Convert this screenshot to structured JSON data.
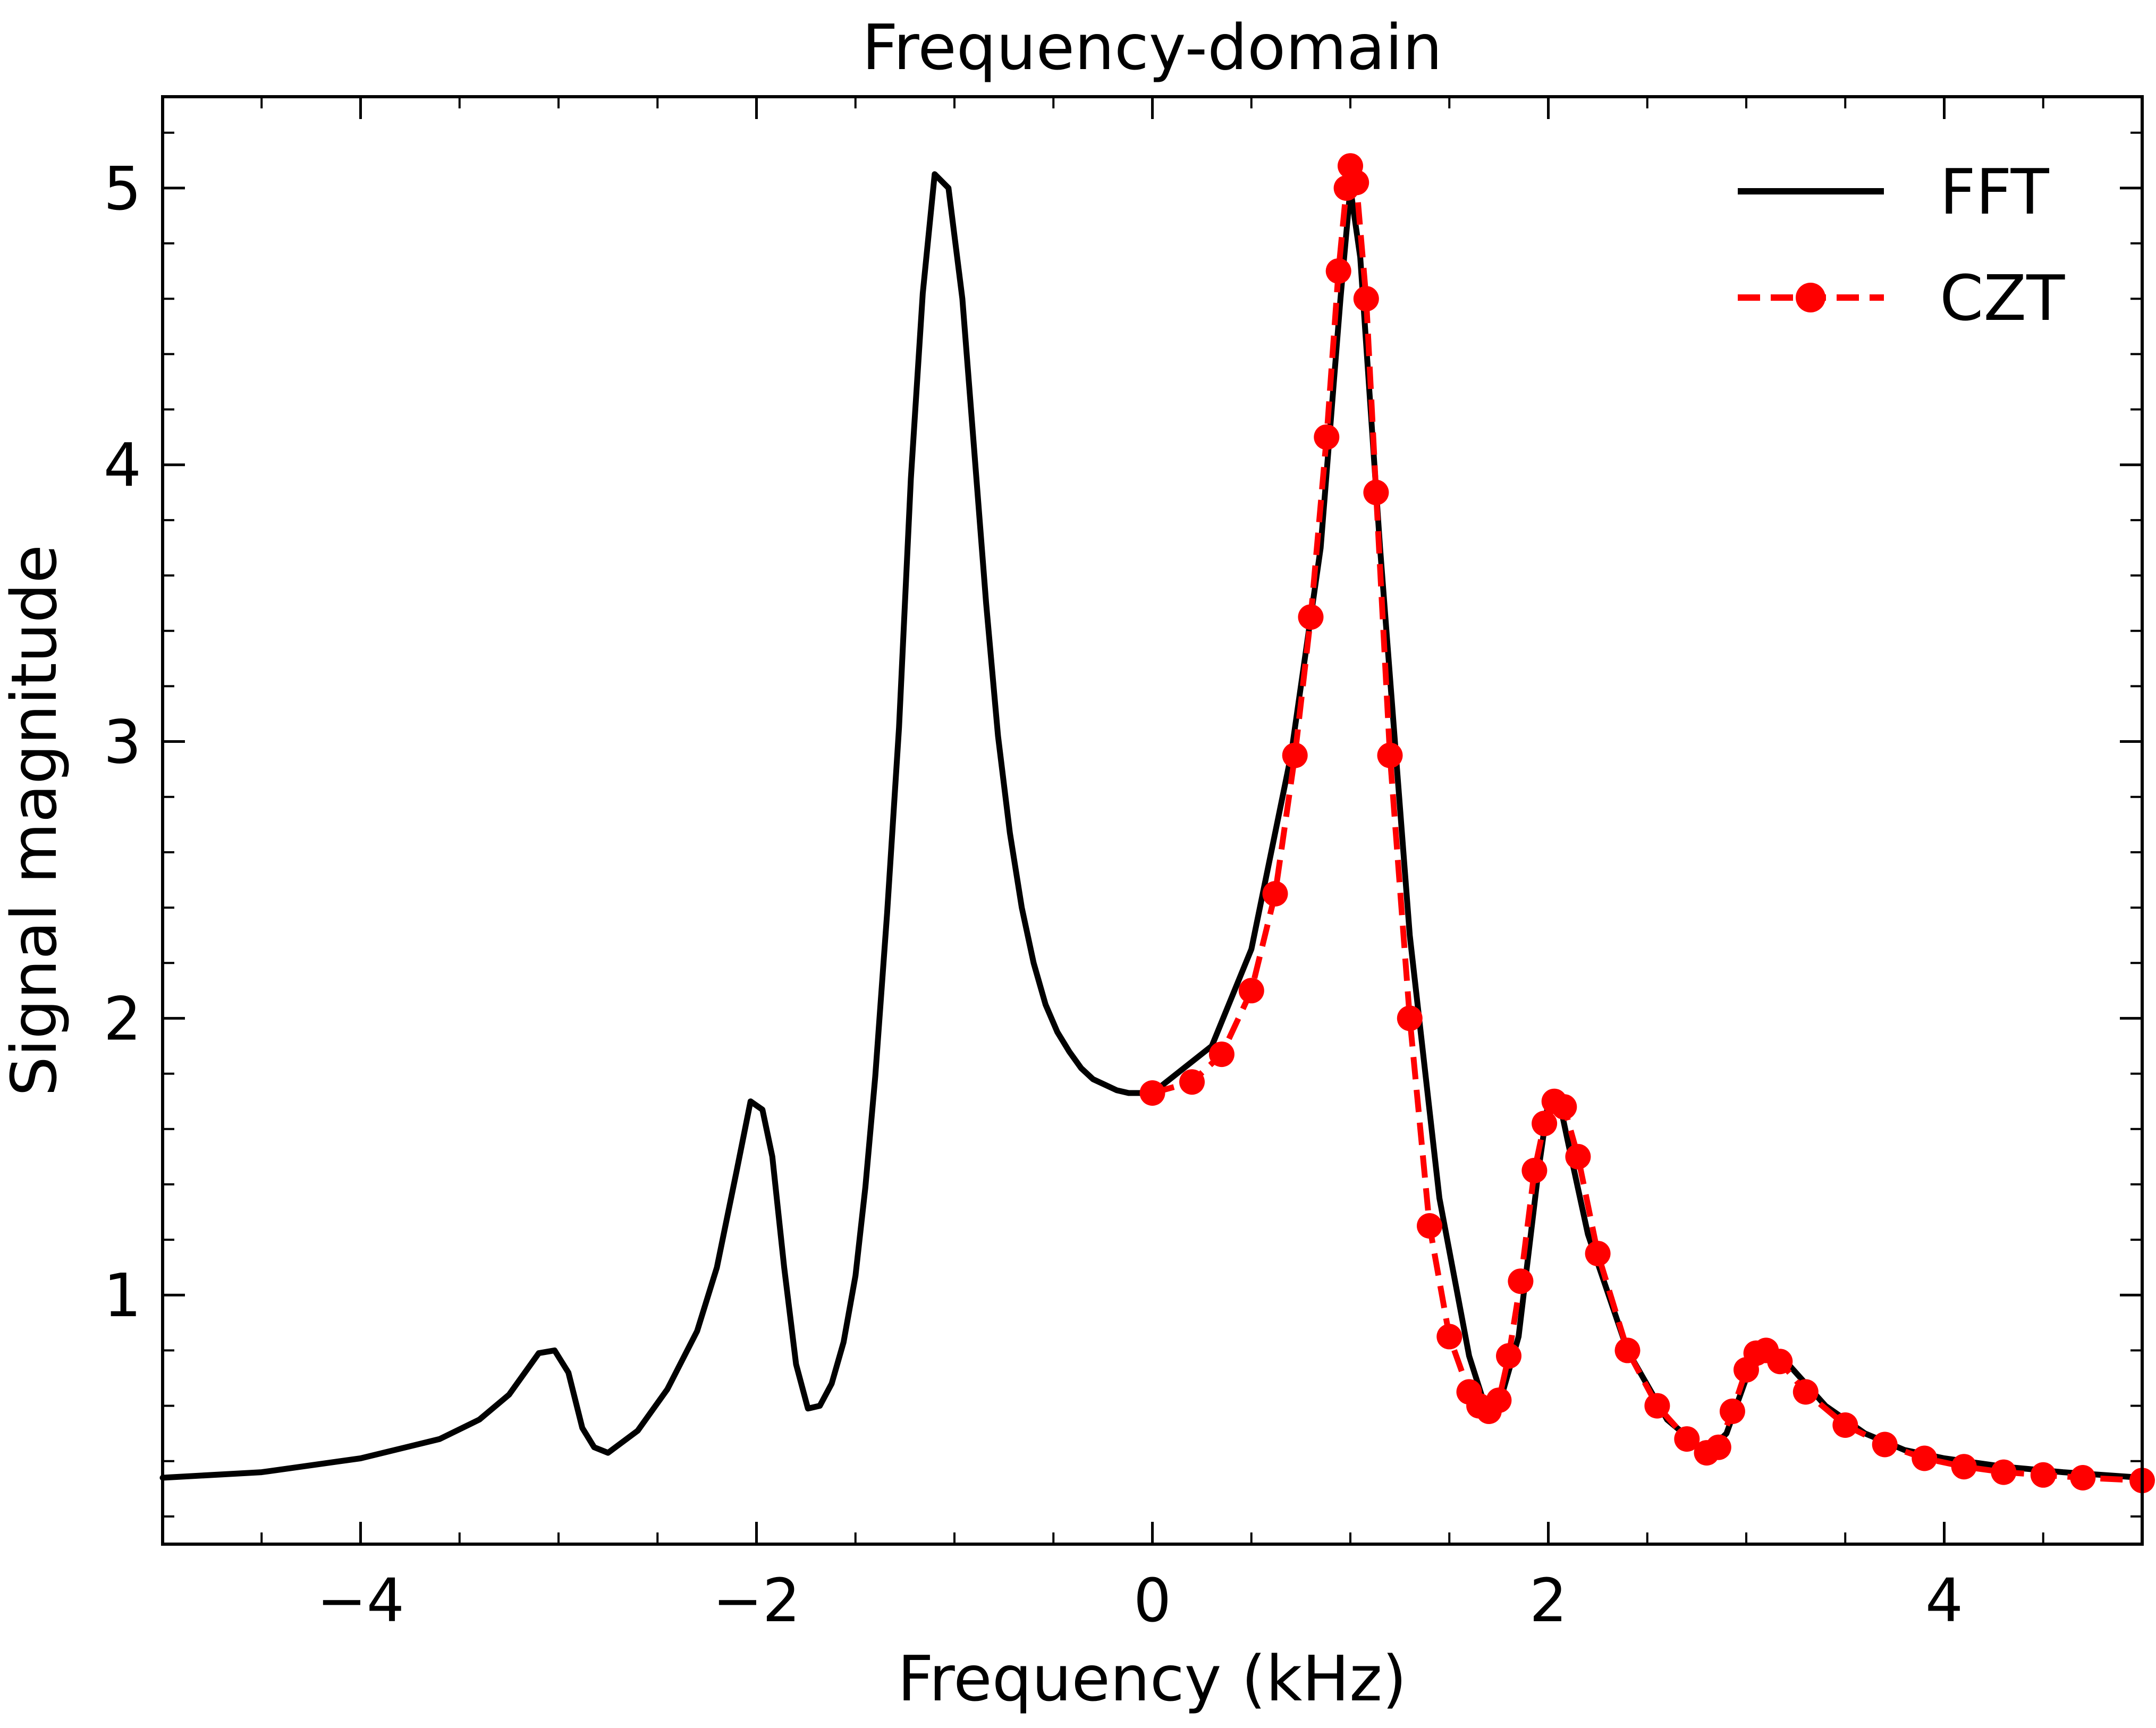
{
  "chart_data": {
    "type": "line",
    "title": "Frequency-domain",
    "xlabel": "Frequency (kHz)",
    "ylabel": "Signal magnitude",
    "xlim": [
      -5,
      5
    ],
    "ylim": [
      0.1,
      5.33
    ],
    "xticks": [
      {
        "value": -4,
        "label": "−4"
      },
      {
        "value": -2,
        "label": "−2"
      },
      {
        "value": 0,
        "label": "0"
      },
      {
        "value": 2,
        "label": "2"
      },
      {
        "value": 4,
        "label": "4"
      }
    ],
    "yticks": [
      {
        "value": 1,
        "label": "1"
      },
      {
        "value": 2,
        "label": "2"
      },
      {
        "value": 3,
        "label": "3"
      },
      {
        "value": 4,
        "label": "4"
      },
      {
        "value": 5,
        "label": "5"
      }
    ],
    "x_minor_step": 0.5,
    "y_minor_step": 0.2,
    "legend": "top-right",
    "grid": false,
    "series": [
      {
        "name": "FFT",
        "color": "#000000",
        "style": "solid",
        "marker": "none",
        "x": [
          -5,
          -4.5,
          -4,
          -3.6,
          -3.4,
          -3.25,
          -3.1,
          -3.02,
          -2.95,
          -2.88,
          -2.82,
          -2.75,
          -2.6,
          -2.45,
          -2.3,
          -2.2,
          -2.1,
          -2.03,
          -1.97,
          -1.92,
          -1.86,
          -1.8,
          -1.74,
          -1.68,
          -1.62,
          -1.56,
          -1.5,
          -1.45,
          -1.4,
          -1.34,
          -1.28,
          -1.22,
          -1.16,
          -1.1,
          -1.03,
          -0.96,
          -0.9,
          -0.84,
          -0.78,
          -0.72,
          -0.66,
          -0.6,
          -0.54,
          -0.48,
          -0.42,
          -0.36,
          -0.3,
          -0.24,
          -0.18,
          -0.12,
          -0.06,
          0,
          0.3,
          0.5,
          0.7,
          0.85,
          0.95,
          1.0,
          1.05,
          1.15,
          1.3,
          1.45,
          1.6,
          1.68,
          1.75,
          1.85,
          1.95,
          2.0,
          2.05,
          2.1,
          2.2,
          2.4,
          2.6,
          2.8,
          2.9,
          3.0,
          3.1,
          3.2,
          3.4,
          3.6,
          3.8,
          4.0,
          4.3,
          4.6,
          5.0
        ],
        "y": [
          0.34,
          0.36,
          0.41,
          0.48,
          0.55,
          0.64,
          0.79,
          0.8,
          0.72,
          0.52,
          0.45,
          0.43,
          0.51,
          0.66,
          0.87,
          1.1,
          1.45,
          1.7,
          1.67,
          1.5,
          1.1,
          0.75,
          0.59,
          0.6,
          0.68,
          0.83,
          1.07,
          1.39,
          1.79,
          2.38,
          3.05,
          3.95,
          4.62,
          5.05,
          5.0,
          4.6,
          4.05,
          3.5,
          3.02,
          2.67,
          2.4,
          2.2,
          2.05,
          1.95,
          1.88,
          1.82,
          1.78,
          1.76,
          1.74,
          1.73,
          1.73,
          1.73,
          1.9,
          2.25,
          2.95,
          3.7,
          4.6,
          5.0,
          4.75,
          3.7,
          2.3,
          1.35,
          0.78,
          0.6,
          0.6,
          0.85,
          1.45,
          1.7,
          1.72,
          1.55,
          1.22,
          0.8,
          0.55,
          0.43,
          0.5,
          0.7,
          0.8,
          0.76,
          0.6,
          0.5,
          0.44,
          0.41,
          0.38,
          0.36,
          0.34
        ]
      },
      {
        "name": "CZT",
        "color": "#ff0000",
        "style": "dashed",
        "marker": "circle",
        "x": [
          0,
          0.2,
          0.35,
          0.5,
          0.62,
          0.72,
          0.8,
          0.88,
          0.94,
          0.98,
          1.0,
          1.03,
          1.08,
          1.13,
          1.2,
          1.3,
          1.4,
          1.5,
          1.6,
          1.65,
          1.7,
          1.75,
          1.8,
          1.86,
          1.93,
          1.98,
          2.03,
          2.08,
          2.15,
          2.25,
          2.4,
          2.55,
          2.7,
          2.8,
          2.86,
          2.93,
          3.0,
          3.05,
          3.1,
          3.17,
          3.3,
          3.5,
          3.7,
          3.9,
          4.1,
          4.3,
          4.5,
          4.7,
          5.0
        ],
        "y": [
          1.73,
          1.77,
          1.87,
          2.1,
          2.45,
          2.95,
          3.45,
          4.1,
          4.7,
          5.0,
          5.08,
          5.02,
          4.6,
          3.9,
          2.95,
          2.0,
          1.25,
          0.85,
          0.65,
          0.6,
          0.58,
          0.62,
          0.78,
          1.05,
          1.45,
          1.62,
          1.7,
          1.68,
          1.5,
          1.15,
          0.8,
          0.6,
          0.48,
          0.43,
          0.45,
          0.58,
          0.73,
          0.79,
          0.8,
          0.76,
          0.65,
          0.53,
          0.46,
          0.41,
          0.38,
          0.36,
          0.35,
          0.34,
          0.33
        ]
      }
    ]
  }
}
